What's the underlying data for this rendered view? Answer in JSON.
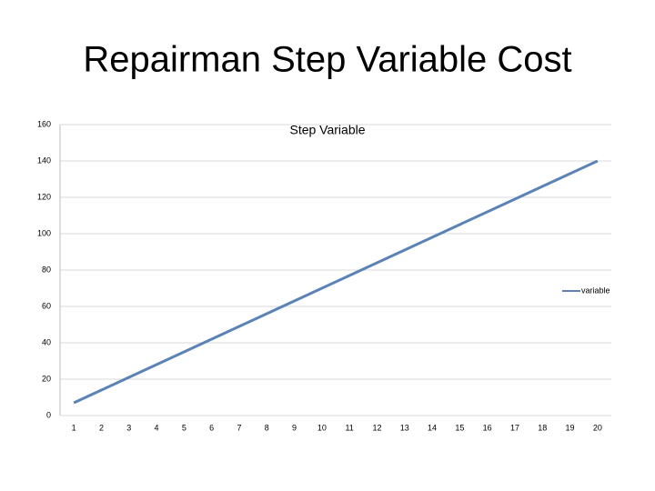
{
  "slide_title": "Repairman Step Variable Cost",
  "chart_data": {
    "type": "line",
    "title": "Step Variable",
    "categories": [
      1,
      2,
      3,
      4,
      5,
      6,
      7,
      8,
      9,
      10,
      11,
      12,
      13,
      14,
      15,
      16,
      17,
      18,
      19,
      20
    ],
    "series": [
      {
        "name": "variable",
        "color": "#5b83b5",
        "values": [
          7,
          14,
          21,
          28,
          35,
          42,
          49,
          56,
          63,
          70,
          77,
          84,
          91,
          98,
          105,
          112,
          119,
          126,
          133,
          140
        ]
      }
    ],
    "ylim": [
      0,
      160
    ],
    "yticks": [
      0,
      20,
      40,
      60,
      80,
      100,
      120,
      140,
      160
    ],
    "grid": true,
    "legend": "right"
  }
}
